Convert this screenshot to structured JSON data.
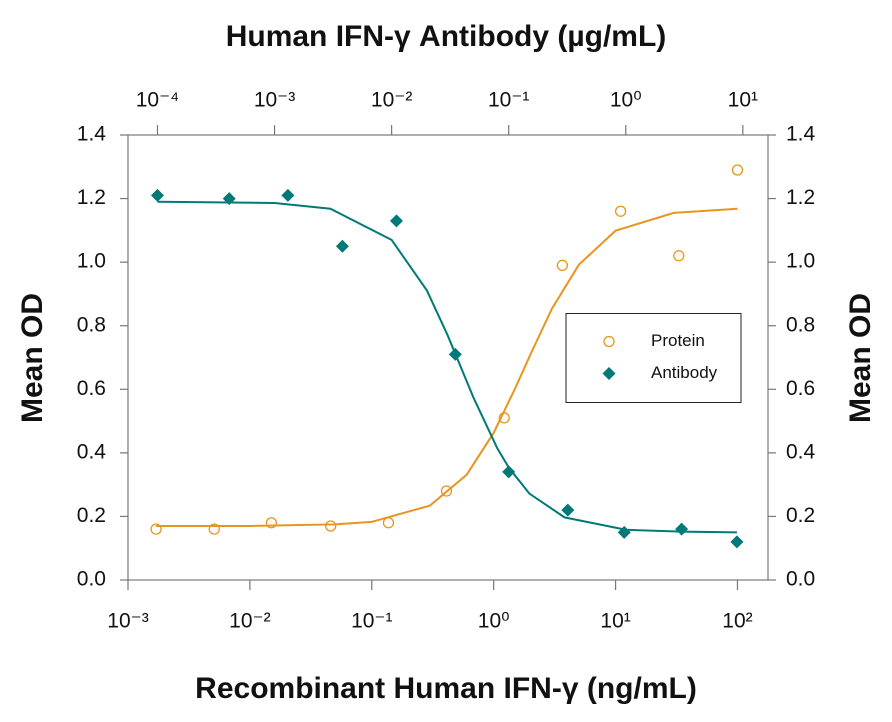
{
  "chart_data": {
    "type": "scatter",
    "title": "Human IFN-γ Antibody (µg/mL)",
    "x_label": "Recombinant Human IFN-γ (ng/mL)",
    "y_label": "Mean OD",
    "y2_label": "Mean OD",
    "log_x": true,
    "log_x2": true,
    "legend": "center-right",
    "xlim": [
      0.001,
      178
    ],
    "xticks": [
      {
        "value": 0.001,
        "label": "10⁻³"
      },
      {
        "value": 0.01,
        "label": "10⁻²"
      },
      {
        "value": 0.1,
        "label": "10⁻¹"
      },
      {
        "value": 1,
        "label": "10⁰"
      },
      {
        "value": 10,
        "label": "10¹"
      },
      {
        "value": 100,
        "label": "10²"
      }
    ],
    "x2lim": [
      5.6e-05,
      16.4
    ],
    "x2ticks": [
      {
        "value": 0.0001,
        "label": "10⁻⁴"
      },
      {
        "value": 0.001,
        "label": "10⁻³"
      },
      {
        "value": 0.01,
        "label": "10⁻²"
      },
      {
        "value": 0.1,
        "label": "10⁻¹"
      },
      {
        "value": 1,
        "label": "10⁰"
      },
      {
        "value": 10,
        "label": "10¹"
      }
    ],
    "ylim": [
      0,
      1.4
    ],
    "yticks": [
      {
        "value": 0,
        "label": "0.0"
      },
      0.2,
      0.4,
      0.6,
      0.8,
      {
        "value": 1,
        "label": "1.0"
      },
      1.2,
      1.4
    ],
    "y2lim": [
      0,
      1.4
    ],
    "y2ticks": [
      {
        "value": 0,
        "label": "0.0"
      },
      0.2,
      0.4,
      0.6,
      0.8,
      {
        "value": 1,
        "label": "1.0"
      },
      1.2,
      1.4
    ],
    "series": [
      {
        "name": "Protein",
        "color": "#e8951e",
        "marker": "circle",
        "x": [
          0.0017,
          0.0051,
          0.015,
          0.046,
          0.137,
          0.41,
          1.22,
          3.66,
          11,
          33,
          100
        ],
        "values": [
          0.16,
          0.16,
          0.18,
          0.17,
          0.18,
          0.28,
          0.51,
          0.99,
          1.16,
          1.02,
          1.29
        ],
        "fit_x": [
          0.0017,
          0.01,
          0.05,
          0.1,
          0.3,
          0.6,
          1,
          1.5,
          2,
          3,
          5,
          10,
          30,
          100
        ],
        "fit_values": [
          0.17,
          0.17,
          0.175,
          0.183,
          0.234,
          0.331,
          0.463,
          0.603,
          0.709,
          0.853,
          0.992,
          1.099,
          1.155,
          1.168
        ]
      },
      {
        "name": "Antibody",
        "color": "#007a78",
        "marker": "diamond",
        "axis": "x2",
        "x": [
          0.0001,
          0.00041,
          0.0013,
          0.0038,
          0.011,
          0.035,
          0.1,
          0.32,
          0.97,
          3,
          8.9
        ],
        "values": [
          1.21,
          1.2,
          1.21,
          1.05,
          1.13,
          0.71,
          0.34,
          0.22,
          0.15,
          0.16,
          0.12
        ],
        "fit_x": [
          0.0001,
          0.001,
          0.003,
          0.01,
          0.02,
          0.03,
          0.05,
          0.08,
          0.1,
          0.15,
          0.3,
          1,
          3,
          8.9
        ],
        "fit_values": [
          1.19,
          1.186,
          1.168,
          1.07,
          0.911,
          0.771,
          0.574,
          0.414,
          0.354,
          0.272,
          0.197,
          0.158,
          0.152,
          0.15
        ]
      }
    ]
  }
}
